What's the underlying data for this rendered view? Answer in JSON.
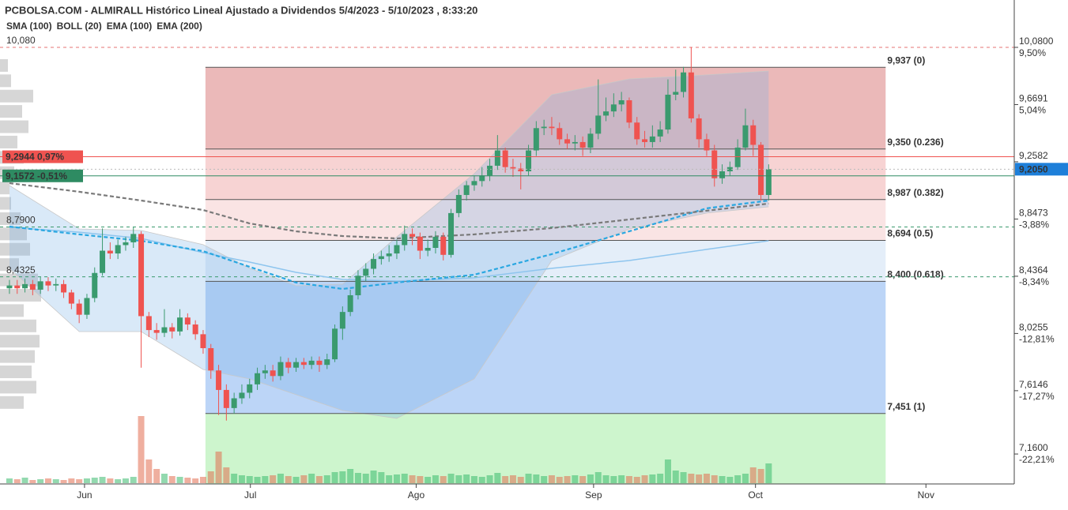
{
  "title": "PCBOLSA.COM - ALMIRALL Histórico Lineal Ajustado a Dividendos 5/4/2023 - 5/10/2023 , 8:33:20",
  "chart_data": {
    "type": "candlestick",
    "open": [
      8.35,
      8.37,
      8.35,
      8.38,
      8.34,
      8.4,
      8.37,
      8.38,
      8.32,
      8.24,
      8.16,
      8.28,
      8.46,
      8.62,
      8.6,
      8.66,
      8.68,
      8.74,
      8.15,
      8.05,
      8.03,
      8.07,
      8.04,
      8.14,
      8.09,
      8.02,
      7.92,
      7.76,
      7.62,
      7.49,
      7.56,
      7.6,
      7.66,
      7.74,
      7.76,
      7.72,
      7.82,
      7.78,
      7.82,
      7.8,
      7.83,
      7.8,
      7.84,
      8.06,
      8.18,
      8.3,
      8.44,
      8.49,
      8.56,
      8.58,
      8.6,
      8.66,
      8.74,
      8.72,
      8.62,
      8.64,
      8.72,
      8.59,
      8.89,
      9.02,
      9.09,
      9.12,
      9.16,
      9.23,
      9.34,
      9.22,
      9.21,
      9.19,
      9.34,
      9.5,
      9.51,
      9.5,
      9.42,
      9.39,
      9.4,
      9.36,
      9.46,
      9.59,
      9.62,
      9.67,
      9.7,
      9.54,
      9.42,
      9.4,
      9.44,
      9.49,
      9.74,
      9.76,
      9.9,
      9.57,
      9.42,
      9.34,
      9.14,
      9.19,
      9.22,
      9.36,
      9.52,
      9.38,
      9.02
    ],
    "high": [
      8.41,
      8.41,
      8.42,
      8.41,
      8.43,
      8.43,
      8.42,
      8.41,
      8.34,
      8.27,
      8.31,
      8.5,
      8.78,
      8.68,
      8.7,
      8.72,
      8.79,
      8.76,
      8.18,
      8.1,
      8.2,
      8.1,
      8.2,
      8.17,
      8.12,
      8.05,
      7.95,
      7.8,
      7.66,
      7.6,
      7.66,
      7.7,
      7.78,
      7.8,
      7.8,
      7.86,
      7.85,
      7.85,
      7.85,
      7.86,
      7.86,
      7.88,
      8.09,
      8.22,
      8.34,
      8.48,
      8.53,
      8.6,
      8.62,
      8.66,
      8.7,
      8.8,
      8.78,
      8.75,
      8.7,
      8.76,
      8.75,
      8.92,
      9.06,
      9.12,
      9.16,
      9.22,
      9.28,
      9.45,
      9.36,
      9.28,
      9.25,
      9.38,
      9.55,
      9.56,
      9.58,
      9.54,
      9.46,
      9.45,
      9.44,
      9.5,
      9.85,
      9.72,
      9.75,
      9.76,
      9.72,
      9.58,
      9.48,
      9.52,
      9.55,
      9.85,
      9.92,
      9.94,
      10.08,
      9.6,
      9.46,
      9.38,
      9.24,
      9.26,
      9.42,
      9.64,
      9.56,
      9.4,
      9.24
    ],
    "low": [
      8.31,
      8.31,
      8.32,
      8.3,
      8.31,
      8.33,
      8.33,
      8.28,
      8.2,
      8.1,
      8.13,
      8.25,
      8.44,
      8.56,
      8.56,
      8.62,
      8.64,
      7.78,
      8.0,
      7.98,
      8.0,
      7.99,
      8.01,
      8.05,
      7.98,
      7.88,
      7.7,
      7.44,
      7.4,
      7.45,
      7.52,
      7.56,
      7.62,
      7.7,
      7.68,
      7.69,
      7.74,
      7.75,
      7.77,
      7.77,
      7.75,
      7.77,
      7.82,
      7.98,
      8.15,
      8.27,
      8.4,
      8.45,
      8.52,
      8.54,
      8.56,
      8.62,
      8.66,
      8.56,
      8.58,
      8.6,
      8.55,
      8.57,
      8.86,
      8.98,
      9.05,
      9.08,
      9.12,
      9.2,
      9.18,
      9.15,
      9.06,
      9.16,
      9.3,
      9.45,
      9.45,
      9.38,
      9.35,
      9.34,
      9.3,
      9.32,
      9.42,
      9.55,
      9.58,
      9.62,
      9.5,
      9.38,
      9.36,
      9.36,
      9.4,
      9.46,
      9.7,
      9.72,
      9.54,
      9.36,
      9.3,
      9.08,
      9.1,
      9.16,
      9.2,
      9.34,
      9.3,
      8.98,
      8.98
    ],
    "close": [
      8.37,
      8.35,
      8.38,
      8.34,
      8.4,
      8.37,
      8.38,
      8.32,
      8.24,
      8.16,
      8.28,
      8.46,
      8.62,
      8.6,
      8.66,
      8.68,
      8.74,
      8.15,
      8.05,
      8.03,
      8.07,
      8.04,
      8.14,
      8.09,
      8.02,
      7.92,
      7.76,
      7.62,
      7.49,
      7.56,
      7.6,
      7.66,
      7.74,
      7.76,
      7.72,
      7.82,
      7.78,
      7.82,
      7.8,
      7.83,
      7.8,
      7.84,
      8.06,
      8.18,
      8.3,
      8.44,
      8.49,
      8.56,
      8.58,
      8.6,
      8.66,
      8.74,
      8.72,
      8.62,
      8.64,
      8.72,
      8.59,
      8.89,
      9.02,
      9.09,
      9.12,
      9.16,
      9.23,
      9.34,
      9.22,
      9.21,
      9.19,
      9.34,
      9.5,
      9.51,
      9.5,
      9.42,
      9.39,
      9.4,
      9.36,
      9.46,
      9.59,
      9.62,
      9.67,
      9.7,
      9.54,
      9.42,
      9.4,
      9.44,
      9.49,
      9.74,
      9.76,
      9.9,
      9.57,
      9.42,
      9.34,
      9.14,
      9.19,
      9.22,
      9.36,
      9.52,
      9.38,
      9.02,
      9.205
    ],
    "volume": [
      6,
      5,
      7,
      4,
      5,
      6,
      5,
      4,
      6,
      5,
      6,
      7,
      8,
      6,
      5,
      6,
      8,
      85,
      30,
      18,
      12,
      9,
      8,
      7,
      6,
      8,
      15,
      40,
      20,
      12,
      10,
      9,
      8,
      9,
      10,
      12,
      9,
      8,
      10,
      12,
      9,
      10,
      14,
      15,
      18,
      13,
      12,
      16,
      14,
      10,
      11,
      12,
      10,
      9,
      8,
      10,
      9,
      12,
      10,
      11,
      9,
      8,
      10,
      13,
      9,
      10,
      8,
      12,
      11,
      9,
      10,
      8,
      9,
      10,
      9,
      11,
      14,
      10,
      9,
      10,
      9,
      8,
      10,
      11,
      12,
      30,
      16,
      14,
      12,
      11,
      12,
      10,
      9,
      8,
      10,
      12,
      20,
      18,
      25
    ],
    "up_color": "#3a9a6e",
    "down_color": "#ef5350",
    "xlim": [
      -1.22,
      129.7
    ],
    "xticks": [
      {
        "value": 9.69,
        "label": "Jun"
      },
      {
        "value": 31.1,
        "label": "Jul"
      },
      {
        "value": 52.5,
        "label": "Ago"
      },
      {
        "value": 75.4,
        "label": "Sep"
      },
      {
        "value": 96.3,
        "label": "Oct"
      },
      {
        "value": 118.3,
        "label": "Nov"
      }
    ],
    "ylim": [
      6.945,
      10.42
    ],
    "yticks": [
      {
        "value": 10.08,
        "label": "10,0800"
      },
      {
        "value": 9.6691,
        "label": "9,6691"
      },
      {
        "value": 9.2582,
        "label": "9,2582"
      },
      {
        "value": 8.8473,
        "label": "8,8473"
      },
      {
        "value": 8.4364,
        "label": "8,4364"
      },
      {
        "value": 8.0255,
        "label": "8,0255"
      },
      {
        "value": 7.6146,
        "label": "7,6146"
      },
      {
        "value": 7.16,
        "label": "7,1600"
      }
    ],
    "ytick_pct_labels": [
      "9,50%",
      "5,04%",
      null,
      "-3,88%",
      "-8,34%",
      "-12,81%",
      "-17,27%",
      "-22,21%"
    ],
    "indicators": {
      "x": [
        0,
        9,
        17,
        25,
        31,
        37,
        43,
        50,
        60,
        70,
        80,
        90,
        98
      ],
      "series": [
        {
          "name": "SMA (100)",
          "color": "#8ec5ee",
          "style": "solid",
          "values": [
            8.788,
            8.753,
            8.708,
            8.606,
            8.538,
            8.464,
            8.413,
            8.402,
            8.425,
            8.493,
            8.549,
            8.629,
            8.691
          ]
        },
        {
          "name": "BOLL (20)",
          "color": "#c8c8c8",
          "style": "band",
          "upper": [
            9.088,
            8.776,
            8.765,
            8.663,
            8.493,
            8.368,
            8.379,
            8.719,
            9.173,
            9.74,
            9.853,
            9.882,
            9.91
          ],
          "lower": [
            8.493,
            8.039,
            8.039,
            7.767,
            7.699,
            7.586,
            7.472,
            7.416,
            7.699,
            8.549,
            8.776,
            8.89,
            8.935
          ]
        },
        {
          "name": "EMA (100)",
          "color": "#29a7e1",
          "style": "dashed",
          "values": [
            8.793,
            8.737,
            8.691,
            8.617,
            8.504,
            8.391,
            8.345,
            8.391,
            8.447,
            8.595,
            8.759,
            8.924,
            8.98
          ]
        },
        {
          "name": "EMA (200)",
          "color": "#7a7a7a",
          "style": "dashed",
          "values": [
            9.105,
            9.043,
            8.98,
            8.912,
            8.816,
            8.759,
            8.725,
            8.708,
            8.737,
            8.782,
            8.844,
            8.907,
            8.958
          ]
        }
      ]
    },
    "fibonacci": {
      "x_range": [
        25.3,
        113.1
      ],
      "levels": [
        {
          "value": 9.937,
          "label": "9,937 (0)",
          "color": "#ef8a8a",
          "zone_color": "#ebb9b9"
        },
        {
          "value": 9.35,
          "label": "9,350 (0.236)",
          "color": "#ef8a8a",
          "zone_color": "#f7d3d3"
        },
        {
          "value": 8.987,
          "label": "8,987 (0.382)",
          "color": "#f4a9a9",
          "zone_color": "#fae4e4"
        },
        {
          "value": 8.694,
          "label": "8,694 (0.5)",
          "color": "#4a8fe0",
          "zone_color": "#e4eef9"
        },
        {
          "value": 8.4,
          "label": "8,400 (0.618)",
          "color": "#4a8fe0",
          "zone_color": "#bcd5f7"
        },
        {
          "value": 7.451,
          "label": "7,451 (1)",
          "color": "#4cc866",
          "zone_color": "#cdf5cd"
        }
      ]
    },
    "reference_lines": [
      {
        "value": 10.08,
        "label": "10,080",
        "color": "#e57373"
      },
      {
        "value": 8.79,
        "label": "8,7900",
        "color": "#3a9a6e"
      },
      {
        "value": 8.4325,
        "label": "8,4325",
        "color": "#3a9a6e"
      }
    ],
    "price_tags": [
      {
        "value": 9.2944,
        "label": "9,2944  0,97%",
        "color": "#ef5350",
        "side": "left"
      },
      {
        "value": 9.1572,
        "label": "9,1572  -0,51%",
        "color": "#2e8b62",
        "side": "left"
      },
      {
        "value": 9.205,
        "label": "9,2050",
        "color": "#1e7fd9",
        "side": "right"
      }
    ],
    "volume_profile": {
      "prices": [
        9.95,
        9.84,
        9.73,
        9.62,
        9.51,
        9.4,
        9.29,
        9.18,
        9.07,
        8.96,
        8.85,
        8.74,
        8.63,
        8.52,
        8.41,
        8.3,
        8.19,
        8.08,
        7.97,
        7.86,
        7.75,
        7.64,
        7.53
      ],
      "values": [
        10,
        14,
        42,
        28,
        36,
        22,
        30,
        18,
        12,
        14,
        26,
        34,
        38,
        24,
        48,
        52,
        30,
        46,
        50,
        44,
        40,
        46,
        30
      ]
    }
  }
}
